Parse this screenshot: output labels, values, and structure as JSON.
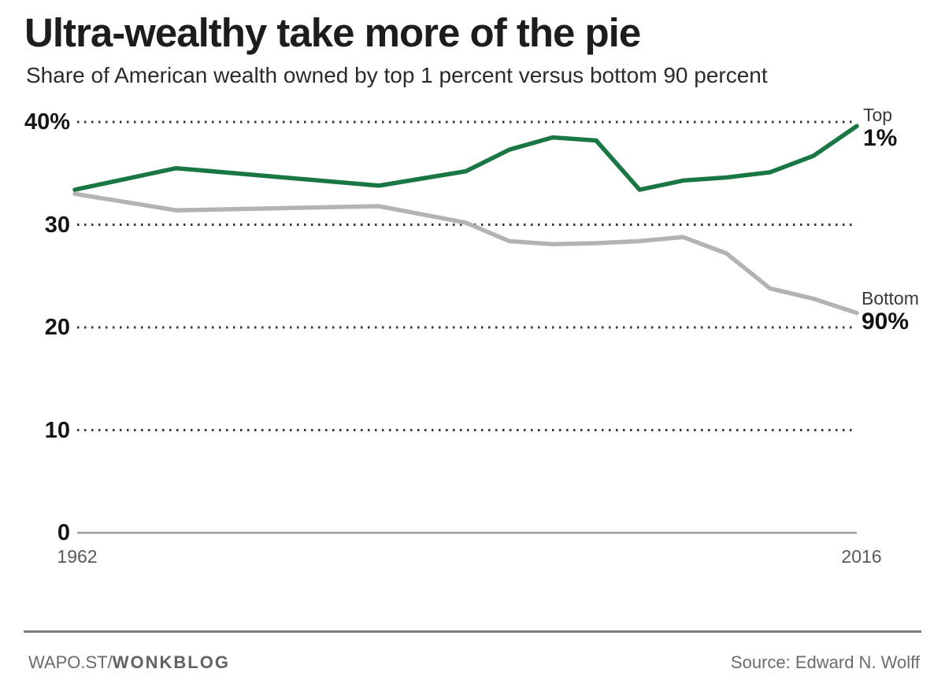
{
  "header": {
    "title": "Ultra-wealthy take more of the pie",
    "subtitle": "Share of American wealth owned by top 1 percent versus bottom 90 percent"
  },
  "chart_data": {
    "type": "line",
    "title": "Ultra-wealthy take more of the pie",
    "subtitle": "Share of American wealth owned by top 1 percent versus bottom 90 percent",
    "x": [
      1962,
      1969,
      1983,
      1989,
      1992,
      1995,
      1998,
      2001,
      2004,
      2007,
      2010,
      2013,
      2016
    ],
    "series": [
      {
        "name": "Top 1%",
        "color": "#187742",
        "values": [
          33.4,
          35.5,
          33.8,
          35.2,
          37.3,
          38.5,
          38.2,
          33.4,
          34.3,
          34.6,
          35.1,
          36.7,
          39.6
        ]
      },
      {
        "name": "Bottom 90%",
        "color": "#b5b2b3",
        "values": [
          33.0,
          31.4,
          31.8,
          30.2,
          28.4,
          28.1,
          28.2,
          28.4,
          28.8,
          27.2,
          23.8,
          22.8,
          21.4
        ]
      }
    ],
    "ylim": [
      0,
      42
    ],
    "xlim": [
      1962,
      2016
    ],
    "yticks": [
      {
        "value": 40,
        "label": "40%"
      },
      {
        "value": 30,
        "label": "30"
      },
      {
        "value": 20,
        "label": "20"
      },
      {
        "value": 10,
        "label": "10"
      },
      {
        "value": 0,
        "label": "0"
      }
    ],
    "xtick_labels": [
      "1962",
      "2016"
    ],
    "grid": "horizontal dotted",
    "legend": {
      "position": "right-of-line-ends",
      "top": {
        "line1": "Top",
        "line2": "1%"
      },
      "bottom": {
        "line1": "Bottom",
        "line2": "90%"
      }
    }
  },
  "footer": {
    "brand_regular": "WAPO.ST/",
    "brand_bold": "WONKBLOG",
    "source": "Source: Edward N. Wolff"
  },
  "colors": {
    "top1_line": "#187742",
    "bottom90_line": "#b5b2b3",
    "gridline": "#363636",
    "axis_line": "#9b9b9b",
    "footer_rule": "#7c7c7c"
  }
}
